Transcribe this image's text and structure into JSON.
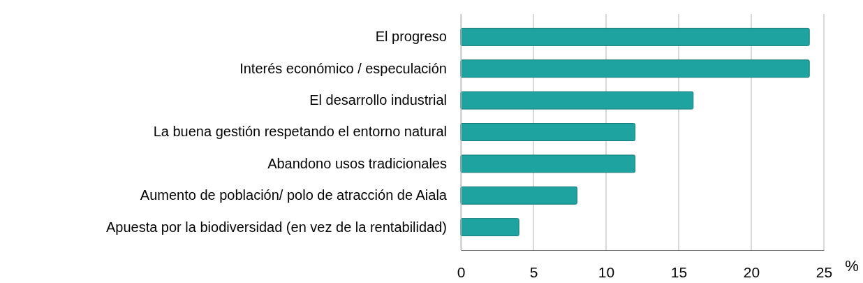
{
  "chart_data": {
    "type": "bar",
    "orientation": "horizontal",
    "xlabel": "%",
    "categories": [
      "El progreso",
      "Interés económico / especulación",
      "El desarrollo industrial",
      "La buena gestión respetando el entorno natural",
      "Abandono usos tradicionales",
      "Aumento de población/ polo de atracción de Aiala",
      "Apuesta por la biodiversidad (en vez de la rentabilidad)"
    ],
    "values": [
      24,
      24,
      16,
      12,
      12,
      8,
      4
    ],
    "color": "#1fa3a0",
    "xlim": [
      0,
      25
    ],
    "xticks": [
      0,
      5,
      10,
      15,
      20,
      25
    ],
    "grid": "x"
  }
}
